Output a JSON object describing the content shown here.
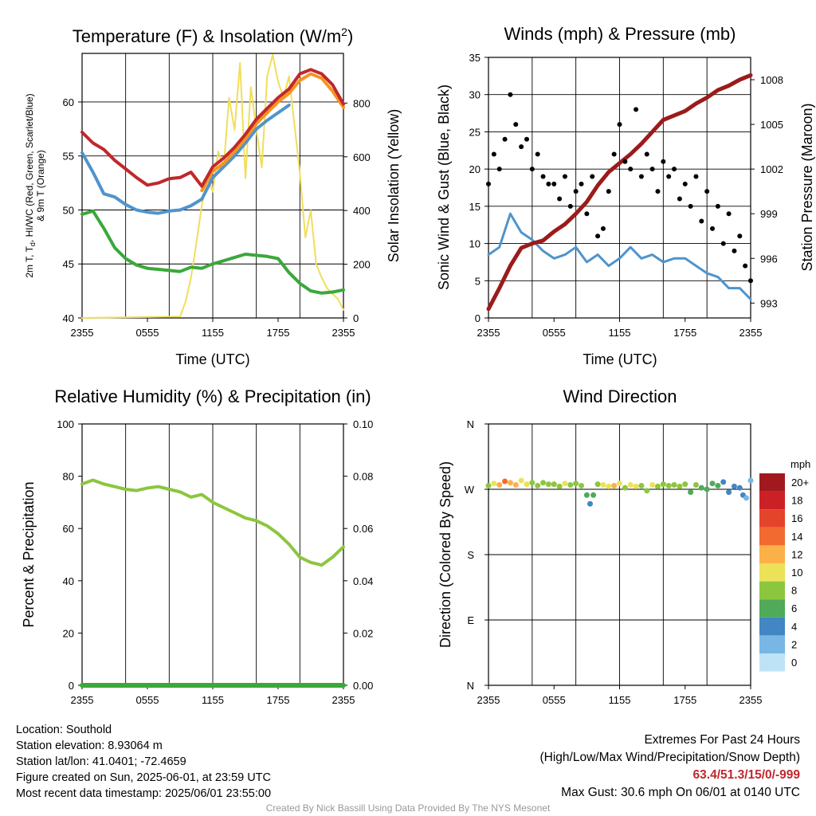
{
  "panels": {
    "temp": {
      "title_main": "Temperature (F) & Insolation (W/m",
      "title_sup": "2",
      "title_end": ")",
      "xlabel": "Time (UTC)",
      "ylabel_left_1": "2m T, T",
      "ylabel_left_sub": "d",
      "ylabel_left_2": ", HI/WC (Red, Green, Scarlet/Blue)",
      "ylabel_left_3": "& 9m T (Orange)",
      "ylabel_right": "Solar Insolation (Yellow)"
    },
    "wind": {
      "title": "Winds (mph) & Pressure (mb)",
      "xlabel": "Time (UTC)",
      "ylabel_left": "Sonic Wind & Gust (Blue, Black)",
      "ylabel_right": "Station Pressure (Maroon)"
    },
    "rh": {
      "title": "Relative Humidity (%) & Precipitation (in)",
      "ylabel_left": "Percent & Precipitation"
    },
    "dir": {
      "title": "Wind Direction",
      "ylabel_left": "Direction (Colored By Speed)",
      "legend_title": "mph"
    }
  },
  "chart_data": [
    {
      "id": "temp",
      "type": "line",
      "x_ticks": [
        "2355",
        "0555",
        "1155",
        "1755",
        "2355"
      ],
      "x_range_hours": [
        0,
        24
      ],
      "ylim_left": [
        40,
        64.5
      ],
      "yticks_left": [
        "40",
        "45",
        "50",
        "55",
        "60"
      ],
      "ylim_right": [
        0,
        985
      ],
      "yticks_right": [
        "0",
        "200",
        "400",
        "600",
        "800"
      ],
      "series": [
        {
          "role": "2m T",
          "color": "#c0282c",
          "axis": "left",
          "x": [
            0,
            1,
            2,
            3,
            4,
            5,
            6,
            7,
            8,
            9,
            10,
            11,
            12,
            13,
            14,
            15,
            16,
            17,
            18,
            19,
            20,
            21,
            22,
            23,
            24
          ],
          "y": [
            57.2,
            56.2,
            55.6,
            54.6,
            53.8,
            53.0,
            52.3,
            52.5,
            52.9,
            53.0,
            53.5,
            52.2,
            54.0,
            54.8,
            55.8,
            57.0,
            58.4,
            59.4,
            60.4,
            61.2,
            62.6,
            63.0,
            62.6,
            61.6,
            59.8
          ]
        },
        {
          "role": "9m T",
          "color": "#f7931e",
          "axis": "left",
          "x": [
            11,
            12,
            13,
            14,
            15,
            16,
            17,
            18,
            19,
            20,
            21,
            22,
            23,
            24
          ],
          "y": [
            51.8,
            53.6,
            54.3,
            55.4,
            56.6,
            58.0,
            59.0,
            60.0,
            60.8,
            62.0,
            62.6,
            62.2,
            61.0,
            59.5
          ]
        },
        {
          "role": "HI/WC",
          "color": "#4f94cd",
          "axis": "left",
          "x": [
            0,
            1,
            2,
            3,
            4,
            5,
            6,
            7,
            8,
            9,
            10,
            11,
            12,
            13,
            14,
            15,
            16,
            17,
            18,
            19
          ],
          "y": [
            55.3,
            53.5,
            51.5,
            51.2,
            50.5,
            50.0,
            49.8,
            49.7,
            49.9,
            50.0,
            50.4,
            51.0,
            53.0,
            54.0,
            55.0,
            56.2,
            57.5,
            58.3,
            59.0,
            59.7
          ]
        },
        {
          "role": "Td",
          "color": "#3aa83a",
          "axis": "left",
          "x": [
            0,
            1,
            2,
            3,
            4,
            5,
            6,
            7,
            8,
            9,
            10,
            11,
            12,
            13,
            14,
            15,
            16,
            17,
            18,
            19,
            20,
            21,
            22,
            23,
            24
          ],
          "y": [
            49.6,
            49.9,
            48.3,
            46.5,
            45.5,
            44.9,
            44.6,
            44.5,
            44.4,
            44.3,
            44.7,
            44.6,
            45.0,
            45.3,
            45.6,
            45.9,
            45.8,
            45.7,
            45.5,
            44.2,
            43.2,
            42.5,
            42.3,
            42.4,
            42.6
          ]
        },
        {
          "role": "Insolation",
          "color": "#f2de5a",
          "axis": "right",
          "x": [
            0,
            9,
            9.5,
            10,
            10.5,
            11,
            11.5,
            12,
            12.5,
            13,
            13.5,
            14,
            14.5,
            15,
            15.5,
            16,
            16.5,
            17,
            17.5,
            18,
            18.5,
            19,
            19.5,
            20,
            20.5,
            21,
            21.5,
            22,
            22.5,
            23,
            23.5,
            24
          ],
          "y": [
            0,
            5,
            60,
            150,
            280,
            420,
            520,
            470,
            620,
            560,
            820,
            700,
            950,
            520,
            860,
            700,
            560,
            900,
            980,
            880,
            820,
            900,
            720,
            540,
            300,
            400,
            200,
            150,
            110,
            90,
            70,
            30
          ]
        }
      ]
    },
    {
      "id": "wind",
      "type": "scatter",
      "x_ticks": [
        "2355",
        "0555",
        "1155",
        "1755",
        "2355"
      ],
      "x_range_hours": [
        0,
        24
      ],
      "ylim_left": [
        0,
        35
      ],
      "yticks_left": [
        "0",
        "5",
        "10",
        "15",
        "20",
        "25",
        "30",
        "35"
      ],
      "ylim_right": [
        992.0,
        1009.5
      ],
      "yticks_right": [
        "993",
        "996",
        "999",
        "1002",
        "1005",
        "1008"
      ],
      "series": [
        {
          "role": "Sonic Wind",
          "color": "#4f94cd",
          "axis": "left",
          "x": [
            0,
            1,
            2,
            3,
            4,
            5,
            6,
            7,
            8,
            9,
            10,
            11,
            12,
            13,
            14,
            15,
            16,
            17,
            18,
            19,
            20,
            21,
            22,
            23,
            24
          ],
          "y": [
            8.5,
            9.5,
            14.0,
            11.5,
            10.5,
            9.0,
            8.0,
            8.5,
            9.5,
            7.5,
            8.5,
            7.0,
            8.0,
            9.5,
            8.0,
            8.5,
            7.5,
            8.0,
            8.0,
            7.0,
            6.0,
            5.5,
            4.0,
            4.0,
            2.5
          ]
        },
        {
          "role": "Gust",
          "color": "#000000",
          "axis": "left",
          "x": [
            0,
            0.5,
            1,
            1.5,
            2,
            2.5,
            3,
            3.5,
            4,
            4.5,
            5,
            5.5,
            6,
            6.5,
            7,
            7.5,
            8,
            8.5,
            9,
            9.5,
            10,
            10.5,
            11,
            11.5,
            12,
            12.5,
            13,
            13.5,
            14,
            14.5,
            15,
            15.5,
            16,
            16.5,
            17,
            17.5,
            18,
            18.5,
            19,
            19.5,
            20,
            20.5,
            21,
            21.5,
            22,
            22.5,
            23,
            23.5,
            24
          ],
          "y": [
            18,
            22,
            20,
            24,
            30,
            26,
            23,
            24,
            20,
            22,
            19,
            18,
            18,
            16,
            19,
            15,
            17,
            18,
            14,
            19,
            11,
            12,
            17,
            22,
            26,
            21,
            20,
            28,
            19,
            22,
            20,
            17,
            21,
            19,
            20,
            16,
            18,
            15,
            19,
            13,
            17,
            12,
            15,
            10,
            14,
            9,
            11,
            7,
            5
          ]
        },
        {
          "role": "Station Pressure",
          "color": "#9b1b1b",
          "axis": "right",
          "x": [
            0,
            1,
            2,
            3,
            4,
            5,
            6,
            7,
            8,
            9,
            10,
            11,
            12,
            13,
            14,
            15,
            16,
            17,
            18,
            19,
            20,
            21,
            22,
            23,
            24
          ],
          "y": [
            992.6,
            994.0,
            995.5,
            996.7,
            997.0,
            997.2,
            997.8,
            998.3,
            999.0,
            999.8,
            1000.9,
            1001.8,
            1002.4,
            1003.0,
            1003.7,
            1004.5,
            1005.3,
            1005.6,
            1005.9,
            1006.4,
            1006.8,
            1007.3,
            1007.6,
            1008.0,
            1008.3
          ]
        }
      ]
    },
    {
      "id": "rh",
      "type": "line",
      "x_ticks": [
        "2355",
        "0555",
        "1155",
        "1755",
        "2355"
      ],
      "x_range_hours": [
        0,
        24
      ],
      "ylim_left": [
        0,
        100
      ],
      "yticks_left": [
        "0",
        "20",
        "40",
        "60",
        "80",
        "100"
      ],
      "ylim_right": [
        0,
        0.1
      ],
      "yticks_right": [
        "0.00",
        "0.02",
        "0.04",
        "0.06",
        "0.08",
        "0.10"
      ],
      "series": [
        {
          "role": "Relative Humidity",
          "color": "#8cc63f",
          "axis": "left",
          "x": [
            0,
            1,
            2,
            3,
            4,
            5,
            6,
            7,
            8,
            9,
            10,
            11,
            12,
            13,
            14,
            15,
            16,
            17,
            18,
            19,
            20,
            21,
            22,
            23,
            24
          ],
          "y": [
            77,
            78.5,
            77,
            76,
            75,
            74.5,
            75.5,
            76,
            75,
            74,
            72,
            73,
            70,
            68,
            66,
            64,
            63,
            61,
            58,
            54,
            49,
            47,
            46,
            49,
            53
          ]
        },
        {
          "role": "Precipitation",
          "color": "#3aa83a",
          "axis": "right",
          "x": [
            0,
            24
          ],
          "y": [
            0,
            0
          ]
        }
      ]
    },
    {
      "id": "dir",
      "type": "scatter",
      "x_ticks": [
        "2355",
        "0555",
        "1155",
        "1755",
        "2355"
      ],
      "x_range_hours": [
        0,
        24
      ],
      "y_ticks": [
        "N",
        "E",
        "S",
        "W",
        "N"
      ],
      "ylim_deg": [
        0,
        360
      ],
      "legend_labels": [
        "20+",
        "18",
        "16",
        "14",
        "12",
        "10",
        "8",
        "6",
        "4",
        "2",
        "0"
      ],
      "legend_colors": [
        "#a1191e",
        "#cc2027",
        "#e4442a",
        "#f26a2f",
        "#fbb048",
        "#ece25a",
        "#8cc63f",
        "#4faa5a",
        "#4286c4",
        "#78b7e3",
        "#bfe3f6"
      ],
      "points": {
        "x": [
          0,
          0.5,
          1,
          1.5,
          2,
          2.5,
          3,
          3.5,
          4,
          4.5,
          5,
          5.5,
          6,
          6.5,
          7,
          7.5,
          8,
          8.5,
          9,
          9.3,
          9.6,
          10,
          10.5,
          11,
          11.5,
          12,
          12.5,
          13,
          13.5,
          14,
          14.5,
          15,
          15.5,
          16,
          16.5,
          17,
          17.5,
          18,
          18.5,
          19,
          19.5,
          20,
          20.5,
          21,
          21.5,
          22,
          22.5,
          23,
          23.3,
          23.6,
          24
        ],
        "deg": [
          275,
          278,
          276,
          281,
          279,
          276,
          282,
          277,
          279,
          275,
          279,
          277,
          277,
          274,
          278,
          276,
          278,
          275,
          262,
          250,
          262,
          277,
          276,
          274,
          275,
          278,
          272,
          276,
          274,
          275,
          268,
          276,
          274,
          277,
          275,
          276,
          274,
          277,
          266,
          276,
          272,
          270,
          278,
          275,
          280,
          266,
          274,
          272,
          262,
          258,
          282
        ],
        "speed": [
          8,
          10,
          12,
          13,
          12,
          12,
          10,
          9,
          8,
          7,
          8,
          8,
          7,
          8,
          9,
          8,
          7,
          8,
          5,
          4,
          6,
          7,
          9,
          10,
          11,
          10,
          8,
          10,
          9,
          8,
          7,
          9,
          8,
          7,
          8,
          7,
          8,
          7,
          6,
          7,
          6,
          5,
          6,
          5,
          4,
          4,
          3,
          3,
          3,
          2,
          2
        ]
      }
    }
  ],
  "info": {
    "location": "Location: Southold",
    "elevation": "Station elevation: 8.93064 m",
    "latlon": "Station lat/lon: 41.0401; -72.4659",
    "created": "Figure created on Sun, 2025-06-01, at 23:59 UTC",
    "recent": "Most recent data timestamp: 2025/06/01 23:55:00"
  },
  "extremes": {
    "title": "Extremes For Past 24 Hours",
    "subtitle": "(High/Low/Max Wind/Precipitation/Snow Depth)",
    "values": "63.4/51.3/15/0/-999",
    "gust": "Max Gust: 30.6 mph On 06/01 at 0140 UTC"
  },
  "credit": "Created By Nick Bassill Using Data Provided By The NYS Mesonet"
}
